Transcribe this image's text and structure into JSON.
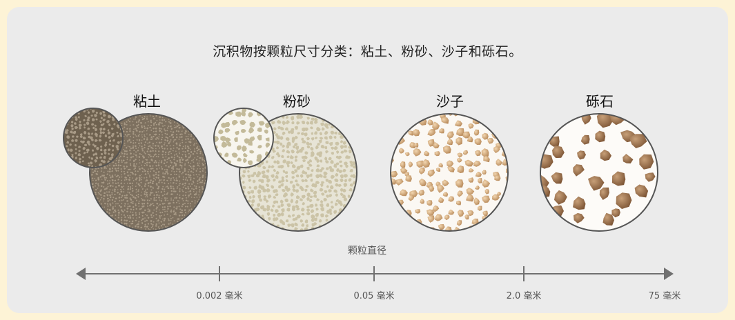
{
  "title": "沉积物按颗粒尺寸分类：粘土、粉砂、沙子和砾石。",
  "categories": [
    {
      "label": "粘土"
    },
    {
      "label": "粉砂"
    },
    {
      "label": "沙子"
    },
    {
      "label": "砾石"
    }
  ],
  "axis": {
    "label": "颗粒直径",
    "ticks": [
      "0.002 毫米",
      "0.05 毫米",
      "2.0 毫米",
      "75 毫米"
    ]
  },
  "colors": {
    "background": "#fdf3d6",
    "panel": "#ebebeb",
    "clay": "#8a7b68",
    "silt": "#c9c0a2",
    "sand": "#cfa77a",
    "gravel": "#9e7450",
    "axis": "#707070"
  }
}
